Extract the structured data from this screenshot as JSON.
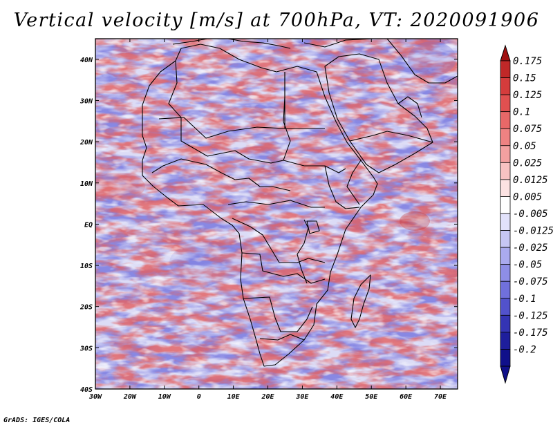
{
  "title": "Vertical velocity [m/s] at 700hPa, VT: 2020091906",
  "footer": "GrADS: IGES/COLA",
  "map": {
    "variable": "Vertical velocity",
    "units": "m/s",
    "level": "700hPa",
    "valid_time": "2020091906",
    "region": "Africa and Arabian Peninsula",
    "lon_range": [
      -30,
      75
    ],
    "lat_range": [
      -40,
      45
    ],
    "lon_ticks": [
      "30W",
      "20W",
      "10W",
      "0",
      "10E",
      "20E",
      "30E",
      "40E",
      "50E",
      "60E",
      "70E"
    ],
    "lat_ticks": [
      "40N",
      "30N",
      "20N",
      "10N",
      "EQ",
      "10S",
      "20S",
      "30S",
      "40S"
    ]
  },
  "colorbar": {
    "labels": [
      "0.175",
      "0.15",
      "0.125",
      "0.1",
      "0.075",
      "0.05",
      "0.025",
      "0.0125",
      "0.005",
      "-0.005",
      "-0.0125",
      "-0.025",
      "-0.05",
      "-0.075",
      "-0.1",
      "-0.125",
      "-0.175",
      "-0.2"
    ],
    "colors": [
      "#a81818",
      "#c02828",
      "#d43c3c",
      "#e05050",
      "#e86868",
      "#ee8282",
      "#f3a0a0",
      "#f8c2c2",
      "#fce2e2",
      "#ffffff",
      "#e2e2fb",
      "#c6c6f4",
      "#aaaaee",
      "#8e8ee6",
      "#7070dc",
      "#5252cc",
      "#3434b4",
      "#1e1e9c",
      "#10108a"
    ],
    "max_arrow_color": "#a01010",
    "min_arrow_color": "#10108a"
  },
  "colors": {
    "positive": "#e05050",
    "negative": "#7070dc",
    "borders": "#000000"
  }
}
